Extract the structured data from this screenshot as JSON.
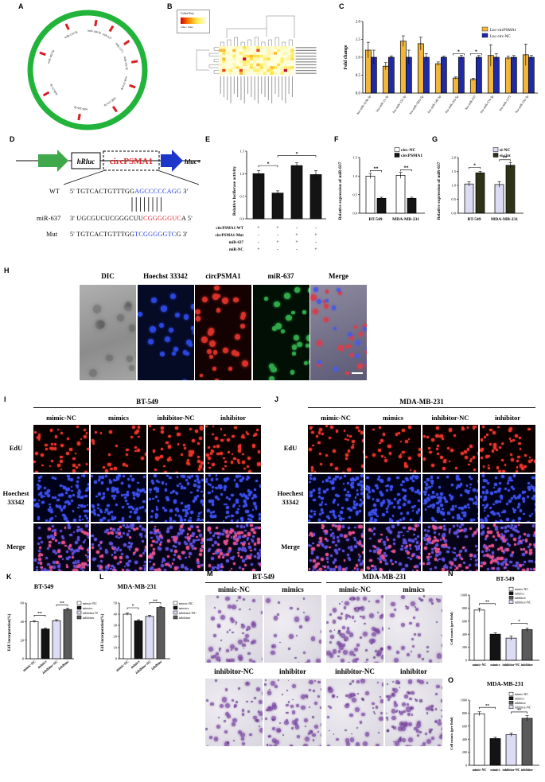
{
  "panel_labels": [
    "A",
    "B",
    "C",
    "D",
    "E",
    "F",
    "G",
    "H",
    "I",
    "J",
    "K",
    "L",
    "M",
    "N",
    "O"
  ],
  "panel_a": {
    "mirnas": [
      "miR-637",
      "miR-1272",
      "miR-33a-3p",
      "miR-574-3p",
      "miR-152-3p",
      "miR-326-3p",
      "miR-21-3p",
      "miR-182-5p",
      "miR-154-5p",
      "miR-146-5p"
    ]
  },
  "panel_b": {
    "color_key_title": "Color Key",
    "color_key_subtitle": "value / value"
  },
  "panel_c": {
    "ylabel": "Fold change",
    "legend": [
      "Lnc-circPSMA1",
      "Lnc-circ-NC"
    ],
    "categories": [
      "hsa-miR-323b-3p",
      "hsa-miR-21-3p",
      "hsa-miR-152-3p",
      "hsa-miR-182a-5p",
      "hsa-miR-146-5p",
      "hsa-miR-205-5p",
      "hsa-miR-637",
      "hsa-miR-574-3p",
      "hsa-miR-1272",
      "hsa-miR-33a-3p"
    ],
    "significance": [
      "",
      "",
      "",
      "",
      "",
      "*",
      "*",
      "",
      "",
      ""
    ]
  },
  "panel_d": {
    "gene_left": "hRluc",
    "insert": "circPSMA1",
    "gene_right": "hluc+",
    "wt_label": "WT",
    "wt_seq_prefix": "5' TGTCACTGTTTGG",
    "wt_seq_site": "AGCCCCCAGG",
    "wt_seq_suffix": " 3'",
    "mir_label": "miR-637",
    "mir_seq_prefix": "3' UGCGUCUCGGGCUU",
    "mir_seq_site": "CGGGGGUC",
    "mir_seq_suffix": "A 5'",
    "mut_label": "Mut",
    "mut_seq_prefix": "5' TGTCACTGTTTGG",
    "mut_seq_site": "TCGGGGGTC",
    "mut_seq_suffix": "G 3'"
  },
  "panel_e": {
    "ylabel": "Relative luciferase activity",
    "row_labels": [
      "circPSMA1-WT",
      "circPSMA1-Mut",
      "miR-637",
      "miR-NC"
    ],
    "row_values": [
      [
        "+",
        "+",
        "-",
        "-"
      ],
      [
        "-",
        "-",
        "+",
        "+"
      ],
      [
        "-",
        "+",
        "+",
        "-"
      ],
      [
        "+",
        "-",
        "-",
        "+"
      ]
    ],
    "significance": [
      "*",
      "*"
    ]
  },
  "panel_f": {
    "ylabel": "Relative expression of miR-637",
    "legend": [
      "circ-NC",
      "circPSMA1"
    ],
    "categories": [
      "BT-549",
      "MDA-MB-231"
    ],
    "significance": [
      "**",
      "**"
    ]
  },
  "panel_g": {
    "ylabel": "Relative expression of miR-637",
    "legend": [
      "si-NC",
      "si-circ"
    ],
    "categories": [
      "BT-549",
      "MDA-MB-231"
    ],
    "significance": [
      "*",
      "**"
    ]
  },
  "panel_h": {
    "columns": [
      "DIC",
      "Hoechst 33342",
      "circPSMA1",
      "miR-637",
      "Merge"
    ]
  },
  "panel_i": {
    "title": "BT-549",
    "columns": [
      "mimic-NC",
      "mimics",
      "inhibitor-NC",
      "inhibitor"
    ],
    "rows": [
      "EdU",
      "Hoechest 33342",
      "Merge"
    ]
  },
  "panel_j": {
    "title": "MDA-MB-231",
    "columns": [
      "mimic-NC",
      "mimics",
      "inhibitor-NC",
      "inhibitor"
    ],
    "rows": [
      "EdU",
      "Hoechest 33342",
      "Merge"
    ]
  },
  "panel_k": {
    "title": "BT-549",
    "ylabel": "EdU incorporation(%)",
    "legend": [
      "mimic-NC",
      "mimics",
      "inhibitor-NC",
      "inhibitor"
    ],
    "categories": [
      "mimic-NC",
      "mimics",
      "inhibitor-NC",
      "inhibitor"
    ],
    "significance": [
      "**",
      "**"
    ]
  },
  "panel_l": {
    "title": "MDA-MB-231",
    "ylabel": "EdU incorporation(%)",
    "legend": [
      "mimic-NC",
      "mimics",
      "inhibitor-NC",
      "inhibitor"
    ],
    "categories": [
      "mimic-NC",
      "mimics",
      "inhibitor-NC",
      "inhibitor"
    ],
    "significance": [
      "*",
      "**"
    ]
  },
  "panel_m": {
    "title_left": "BT-549",
    "title_right": "MDA-MB-231",
    "top_labels": [
      "mimic-NC",
      "mimics",
      "mimic-NC",
      "mimics"
    ],
    "bottom_labels": [
      "inhibitor-NC",
      "inhibitor",
      "inhibitor-NC",
      "inhibitor"
    ]
  },
  "panel_n": {
    "title": "BT-549",
    "ylabel": "Cell counts (per field)",
    "legend": [
      "mimic-NC",
      "mimics",
      "inhibitor",
      "inhibitor-NC"
    ],
    "categories": [
      "mimic-NC",
      "mimics",
      "inhibitor-NC",
      "inhibitor"
    ],
    "significance": [
      "**",
      "*"
    ]
  },
  "panel_o": {
    "title": "MDA-MB-231",
    "ylabel": "Cell counts (per field)",
    "legend": [
      "mimic-NC",
      "mimics",
      "inhibitor",
      "inhibitor-NC"
    ],
    "categories": [
      "mimic-NC",
      "mimics",
      "inhibitor-NC",
      "inhibitor"
    ],
    "significance": [
      "**",
      "**"
    ]
  },
  "chart_data": [
    {
      "id": "C",
      "type": "bar",
      "categories": [
        "hsa-miR-323b-3p",
        "hsa-miR-21-3p",
        "hsa-miR-152-3p",
        "hsa-miR-182a-5p",
        "hsa-miR-146-5p",
        "hsa-miR-205-5p",
        "hsa-miR-637",
        "hsa-miR-574-3p",
        "hsa-miR-1272",
        "hsa-miR-33a-3p"
      ],
      "series": [
        {
          "name": "Lnc-circPSMA1",
          "values": [
            1.2,
            0.75,
            1.45,
            1.38,
            0.82,
            0.42,
            0.38,
            1.05,
            0.98,
            1.07
          ],
          "errors": [
            0.22,
            0.1,
            0.15,
            0.18,
            0.05,
            0.03,
            0.03,
            0.3,
            0.05,
            0.3
          ]
        },
        {
          "name": "Lnc-circ-NC",
          "values": [
            1.0,
            1.0,
            1.0,
            1.0,
            1.0,
            1.0,
            1.0,
            1.0,
            1.0,
            1.0
          ],
          "errors": [
            0.2,
            0.04,
            0.2,
            0.1,
            0.03,
            0.05,
            0.05,
            0.1,
            0.05,
            0.05
          ]
        }
      ],
      "ylabel": "Fold change",
      "ylim": [
        0,
        2.0
      ],
      "yticks": [
        0.0,
        0.5,
        1.0,
        1.5,
        2.0
      ]
    },
    {
      "id": "E",
      "type": "bar",
      "categories": [
        "1",
        "2",
        "3",
        "4"
      ],
      "values": [
        1.0,
        0.57,
        1.18,
        0.98
      ],
      "errors": [
        0.07,
        0.05,
        0.06,
        0.09
      ],
      "ylabel": "Relative luciferase activity",
      "ylim": [
        0,
        1.5
      ],
      "yticks": [
        0.0,
        0.5,
        1.0,
        1.5
      ]
    },
    {
      "id": "F",
      "type": "bar",
      "categories": [
        "BT-549",
        "MDA-MB-231"
      ],
      "series": [
        {
          "name": "circ-NC",
          "values": [
            1.0,
            1.02
          ],
          "errors": [
            0.07,
            0.08
          ]
        },
        {
          "name": "circPSMA1",
          "values": [
            0.4,
            0.4
          ],
          "errors": [
            0.03,
            0.03
          ]
        }
      ],
      "ylabel": "Relative expression of miR-637",
      "ylim": [
        0,
        1.5
      ],
      "yticks": [
        0.0,
        0.5,
        1.0,
        1.5
      ]
    },
    {
      "id": "G",
      "type": "bar",
      "categories": [
        "BT-549",
        "MDA-MB-231"
      ],
      "series": [
        {
          "name": "si-NC",
          "values": [
            1.05,
            1.03
          ],
          "errors": [
            0.08,
            0.1
          ]
        },
        {
          "name": "si-circ",
          "values": [
            1.45,
            1.72
          ],
          "errors": [
            0.05,
            0.1
          ]
        }
      ],
      "ylabel": "Relative expression of miR-637",
      "ylim": [
        0,
        2.0
      ],
      "yticks": [
        0.0,
        0.5,
        1.0,
        1.5,
        2.0
      ]
    },
    {
      "id": "K",
      "type": "bar",
      "categories": [
        "mimic-NC",
        "mimics",
        "inhibitor-NC",
        "inhibitor"
      ],
      "values": [
        40,
        32,
        41,
        53
      ],
      "errors": [
        1,
        0.8,
        1,
        1.5
      ],
      "ylabel": "EdU incorporation(%)",
      "ylim": [
        0,
        60
      ],
      "yticks": [
        0,
        20,
        40,
        60
      ]
    },
    {
      "id": "L",
      "type": "bar",
      "categories": [
        "mimic-NC",
        "mimics",
        "inhibitor-NC",
        "inhibitor"
      ],
      "values": [
        40,
        34,
        38,
        46
      ],
      "errors": [
        1,
        1,
        1,
        1
      ],
      "ylabel": "EdU incorporation(%)",
      "ylim": [
        0,
        50
      ],
      "yticks": [
        0,
        10,
        20,
        30,
        40,
        50
      ]
    },
    {
      "id": "N",
      "type": "bar",
      "categories": [
        "mimic-NC",
        "mimics",
        "inhibitor-NC",
        "inhibitor"
      ],
      "values": [
        770,
        400,
        340,
        470
      ],
      "errors": [
        30,
        20,
        30,
        25
      ],
      "ylabel": "Cell counts (per field)",
      "ylim": [
        0,
        1000
      ],
      "yticks": [
        0,
        200,
        400,
        600,
        800,
        1000
      ]
    },
    {
      "id": "O",
      "type": "bar",
      "categories": [
        "mimic-NC",
        "mimics",
        "inhibitor-NC",
        "inhibitor"
      ],
      "values": [
        790,
        410,
        470,
        720
      ],
      "errors": [
        30,
        20,
        25,
        40
      ],
      "ylabel": "Cell counts (per field)",
      "ylim": [
        0,
        1000
      ],
      "yticks": [
        0,
        200,
        400,
        600,
        800,
        1000
      ]
    }
  ],
  "colors": {
    "gold": "#f2b63a",
    "navy": "#1f2aa8",
    "dark": "#141414",
    "olive": "#2e3318",
    "lavender": "#dcdcf5",
    "gray": "#5a5a5a",
    "green": "#1fb43a"
  }
}
